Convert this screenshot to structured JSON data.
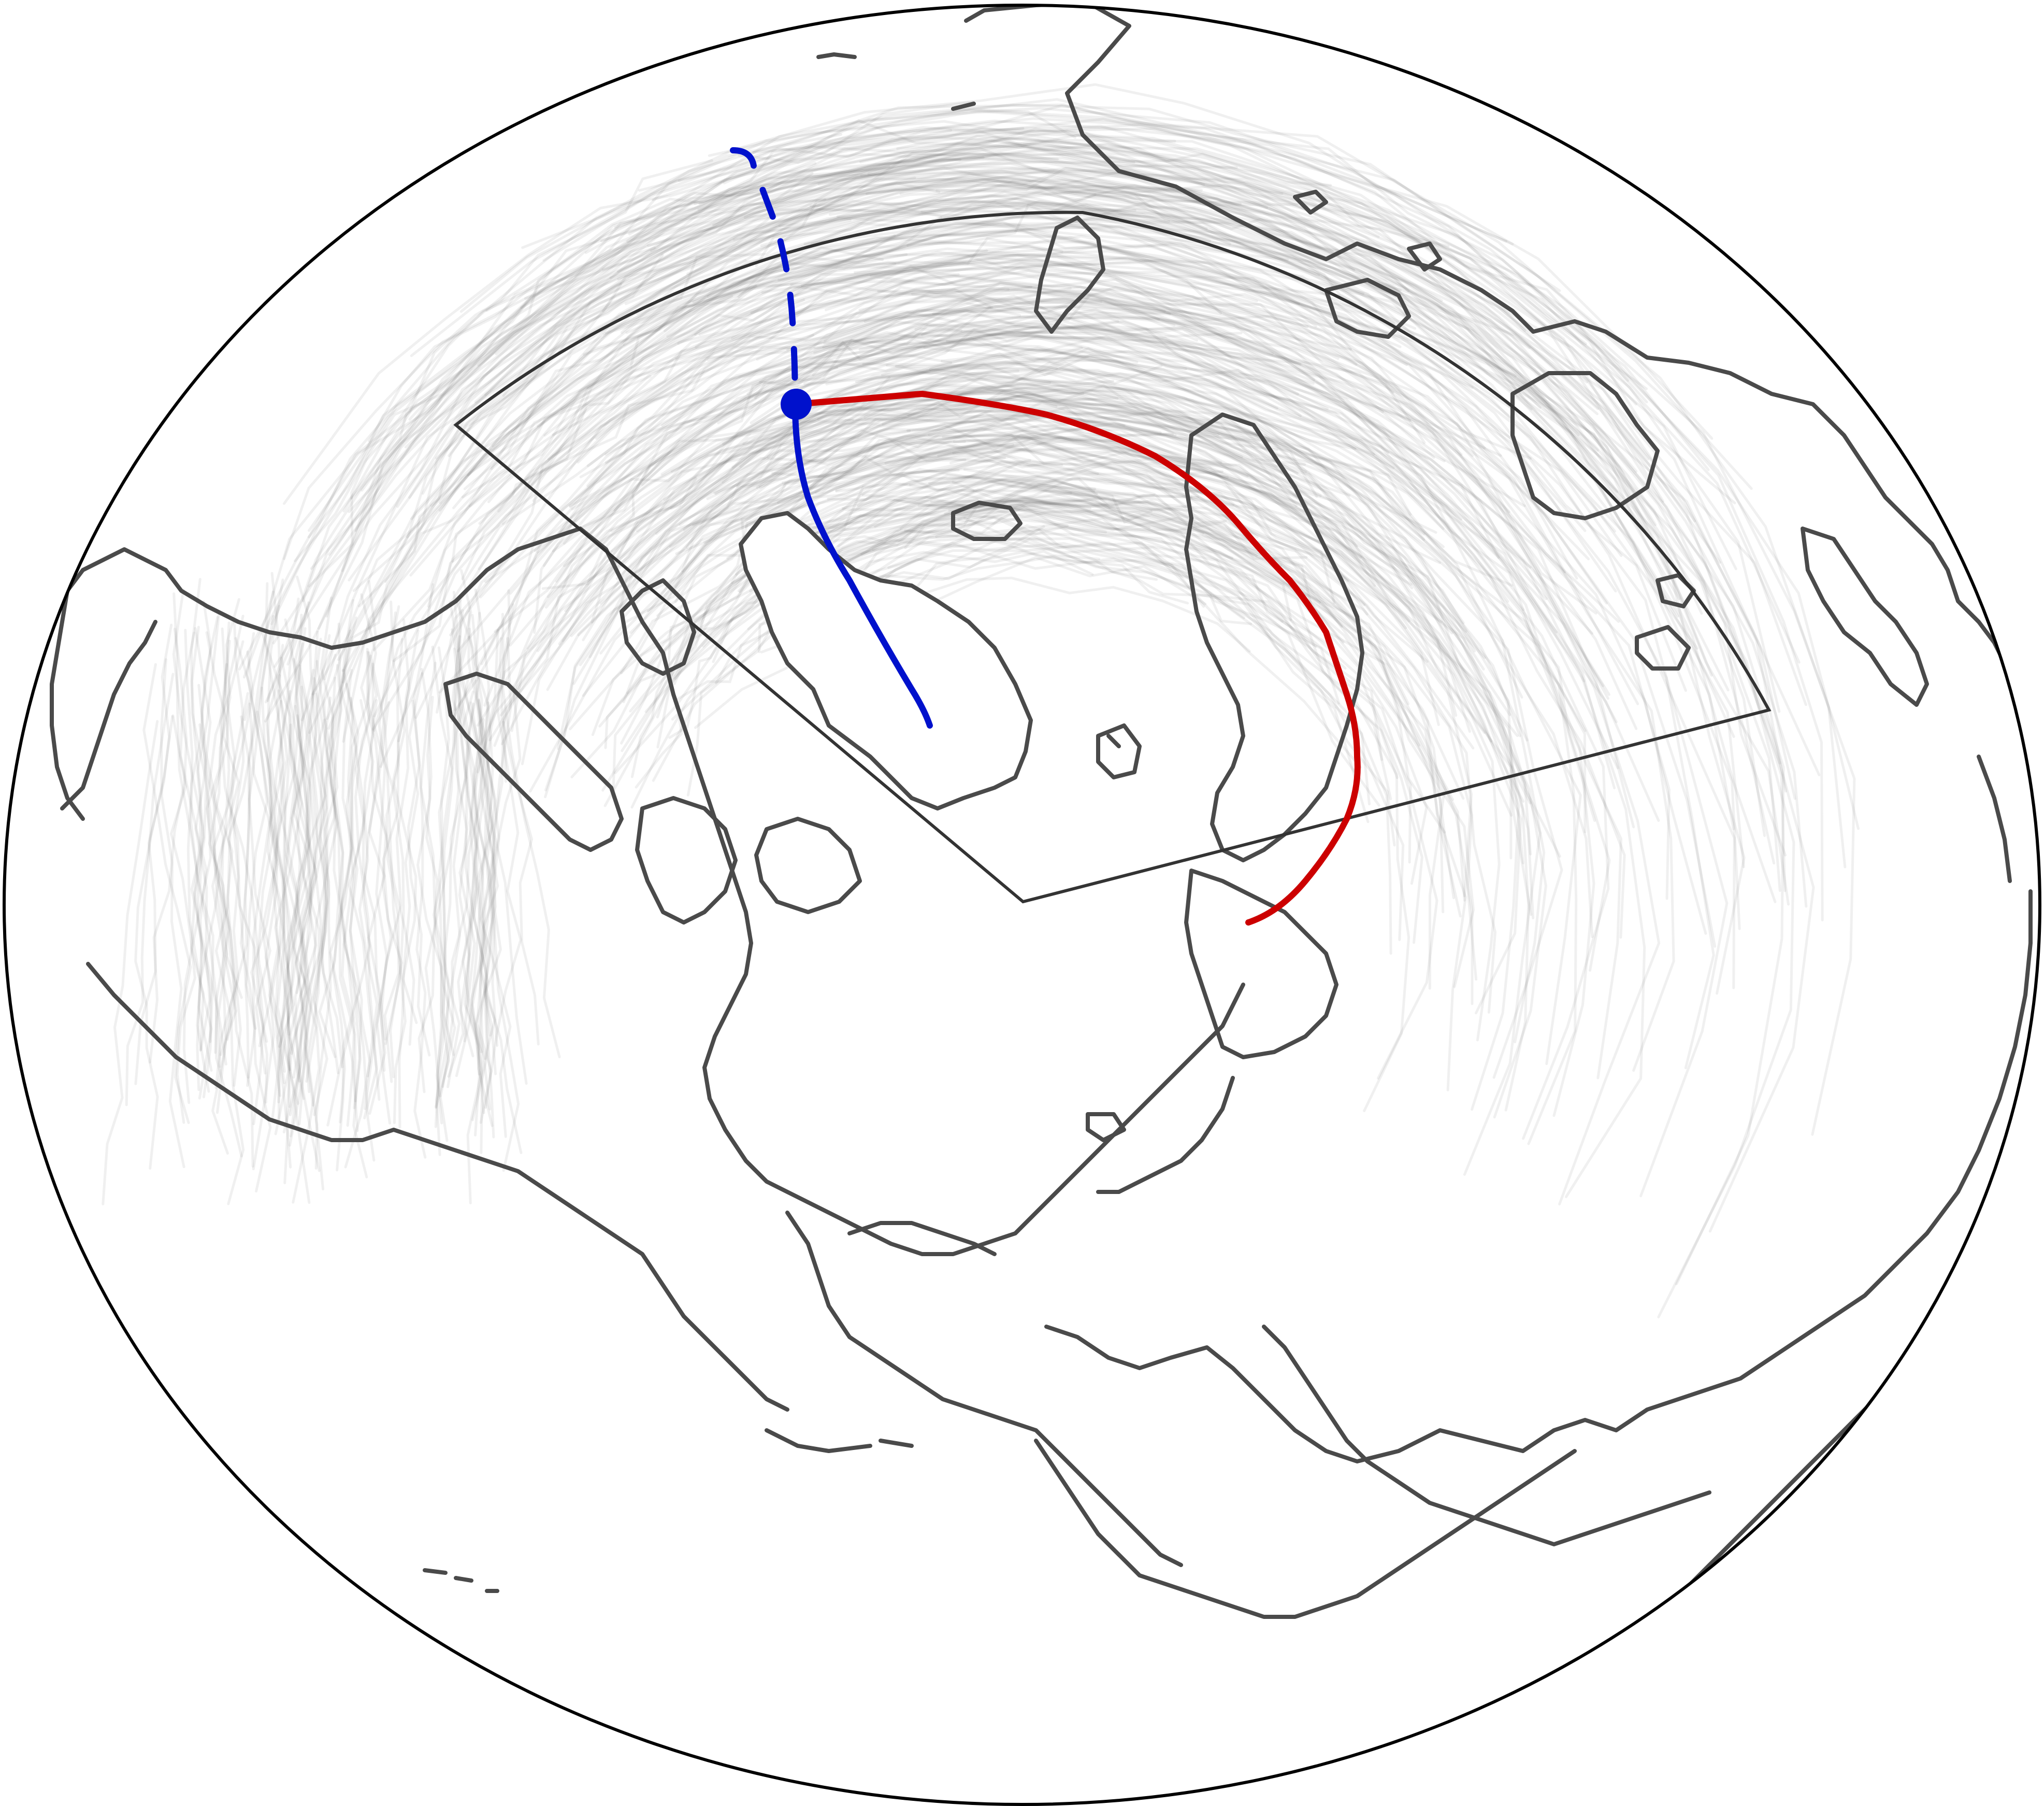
{
  "map": {
    "projection": "orthographic",
    "colors": {
      "coastline": "#4a4a4a",
      "background_tracks": "#555555",
      "region_outline": "#333333",
      "past_track": "#0011cc",
      "forecast_track": "#cc0000",
      "globe_border": "#000000"
    },
    "tracks": {
      "past": {
        "line_style": "solid",
        "color": "#0011cc"
      },
      "previous": {
        "line_style": "dashed",
        "color": "#0011cc"
      },
      "forecast": {
        "line_style": "solid",
        "color": "#cc0000"
      },
      "current_position_marker": {
        "shape": "filled-circle",
        "color": "#0011cc"
      }
    },
    "region_box": {
      "shape": "annular-sector",
      "color": "#333333"
    }
  }
}
